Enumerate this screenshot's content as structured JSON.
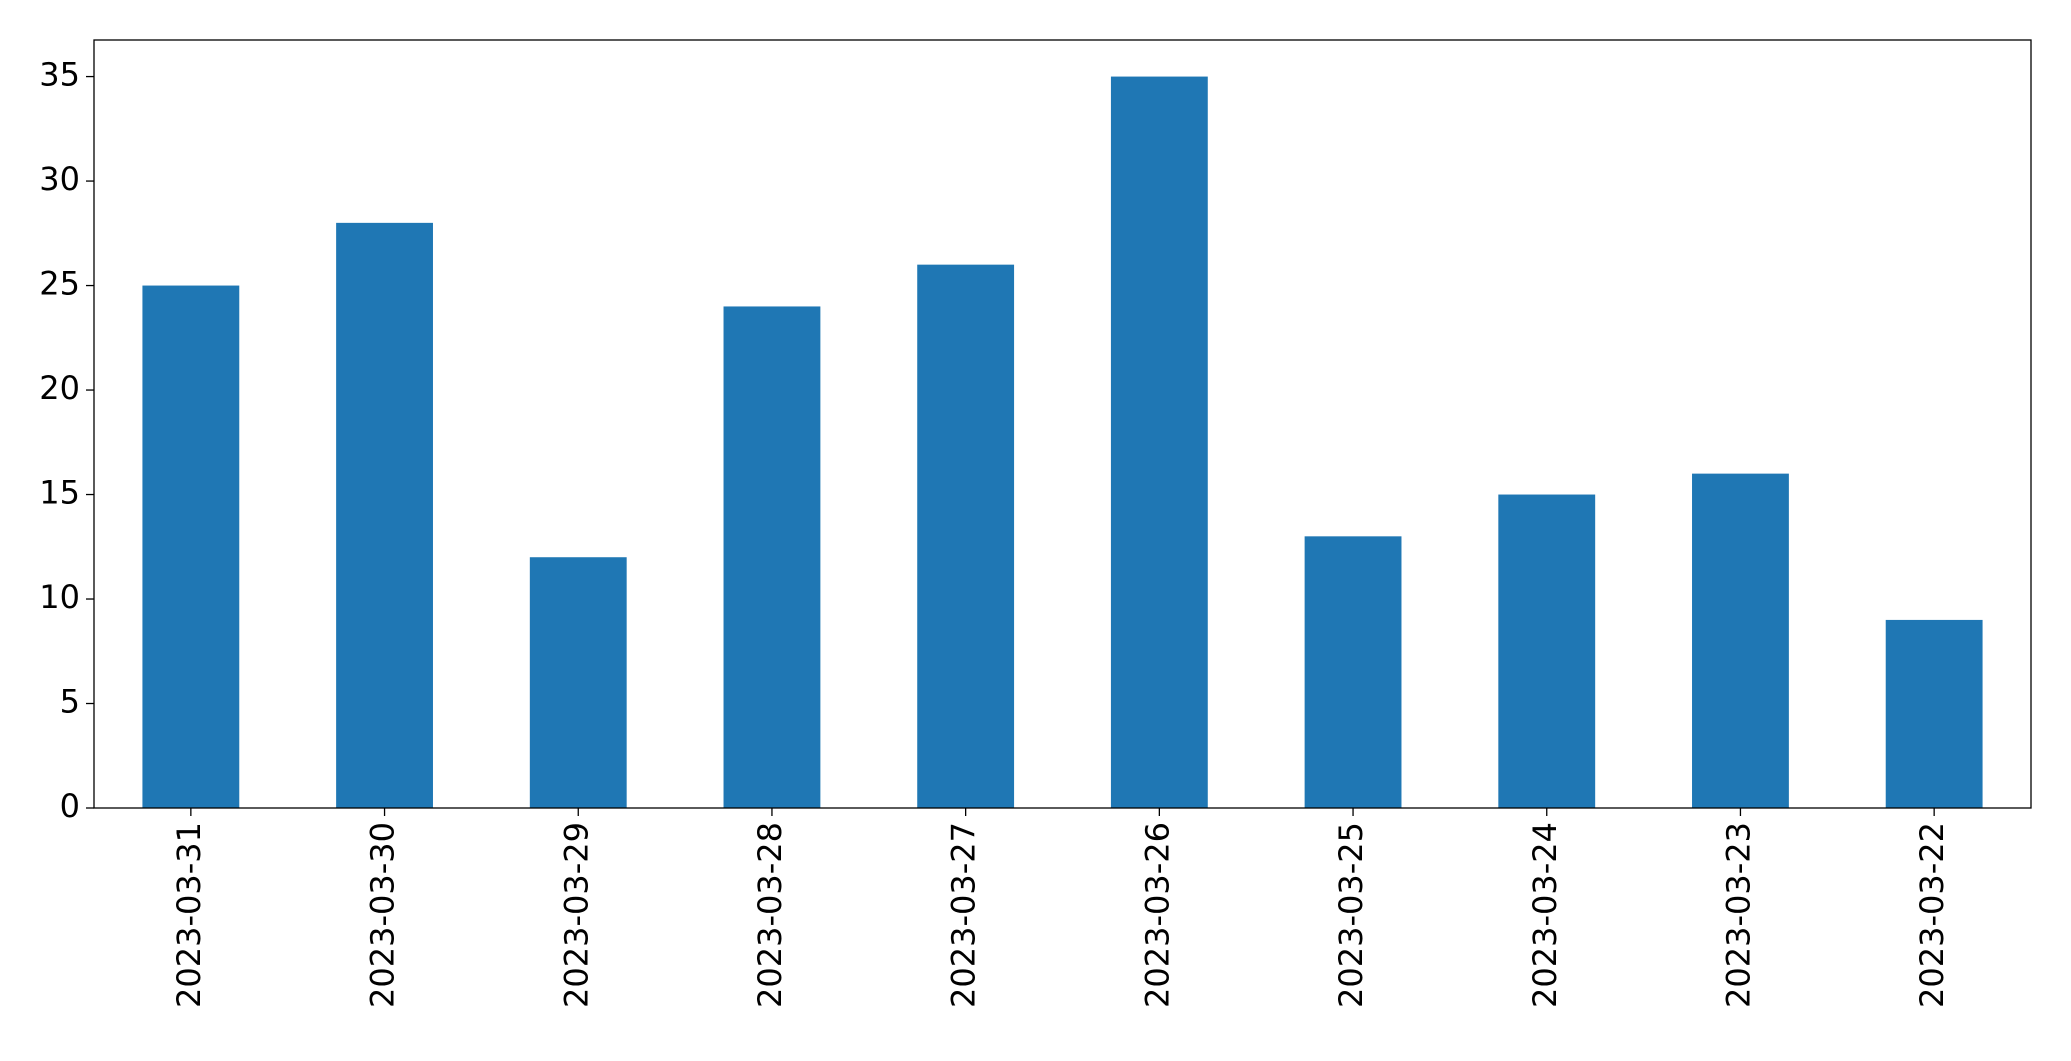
{
  "chart_data": {
    "type": "bar",
    "categories": [
      "2023-03-31",
      "2023-03-30",
      "2023-03-29",
      "2023-03-28",
      "2023-03-27",
      "2023-03-26",
      "2023-03-25",
      "2023-03-24",
      "2023-03-23",
      "2023-03-22"
    ],
    "values": [
      25,
      28,
      12,
      24,
      26,
      35,
      13,
      15,
      16,
      9
    ],
    "color": "#1f77b4",
    "ylim": [
      0,
      36.75
    ],
    "yticks": [
      0,
      5,
      10,
      15,
      20,
      25,
      30,
      35
    ],
    "grid": false
  }
}
